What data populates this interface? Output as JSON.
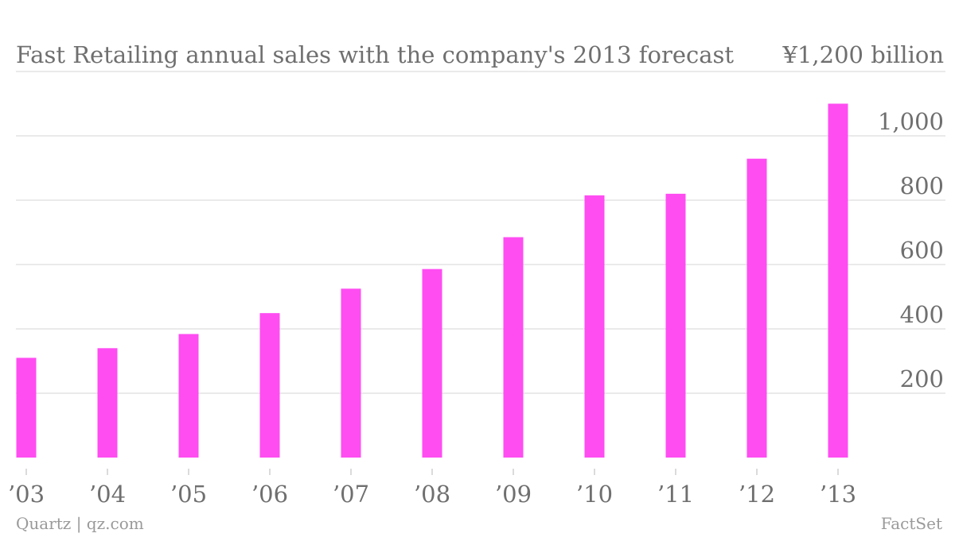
{
  "chart_data": {
    "type": "bar",
    "title": "Fast Retailing annual sales with the company's 2013 forecast",
    "unit_label": "¥1,200 billion",
    "categories": [
      "’03",
      "’04",
      "’05",
      "’06",
      "’07",
      "’08",
      "’09",
      "’10",
      "’11",
      "’12",
      "’13"
    ],
    "values": [
      310,
      340,
      384,
      449,
      525,
      586,
      685,
      815,
      820,
      929,
      1100
    ],
    "ylim": [
      0,
      1200
    ],
    "yticks": [
      200,
      400,
      600,
      800,
      1000
    ],
    "ytick_labels": [
      "200",
      "400",
      "600",
      "800",
      "1,000"
    ],
    "xlabel": "",
    "ylabel": "",
    "grid": true,
    "bar_color": "#ff4df2",
    "grid_color": "#e3e3e3",
    "text_color": "#6f6f6f"
  },
  "footer": {
    "source": "Quartz | qz.com",
    "data_credit": "FactSet"
  }
}
